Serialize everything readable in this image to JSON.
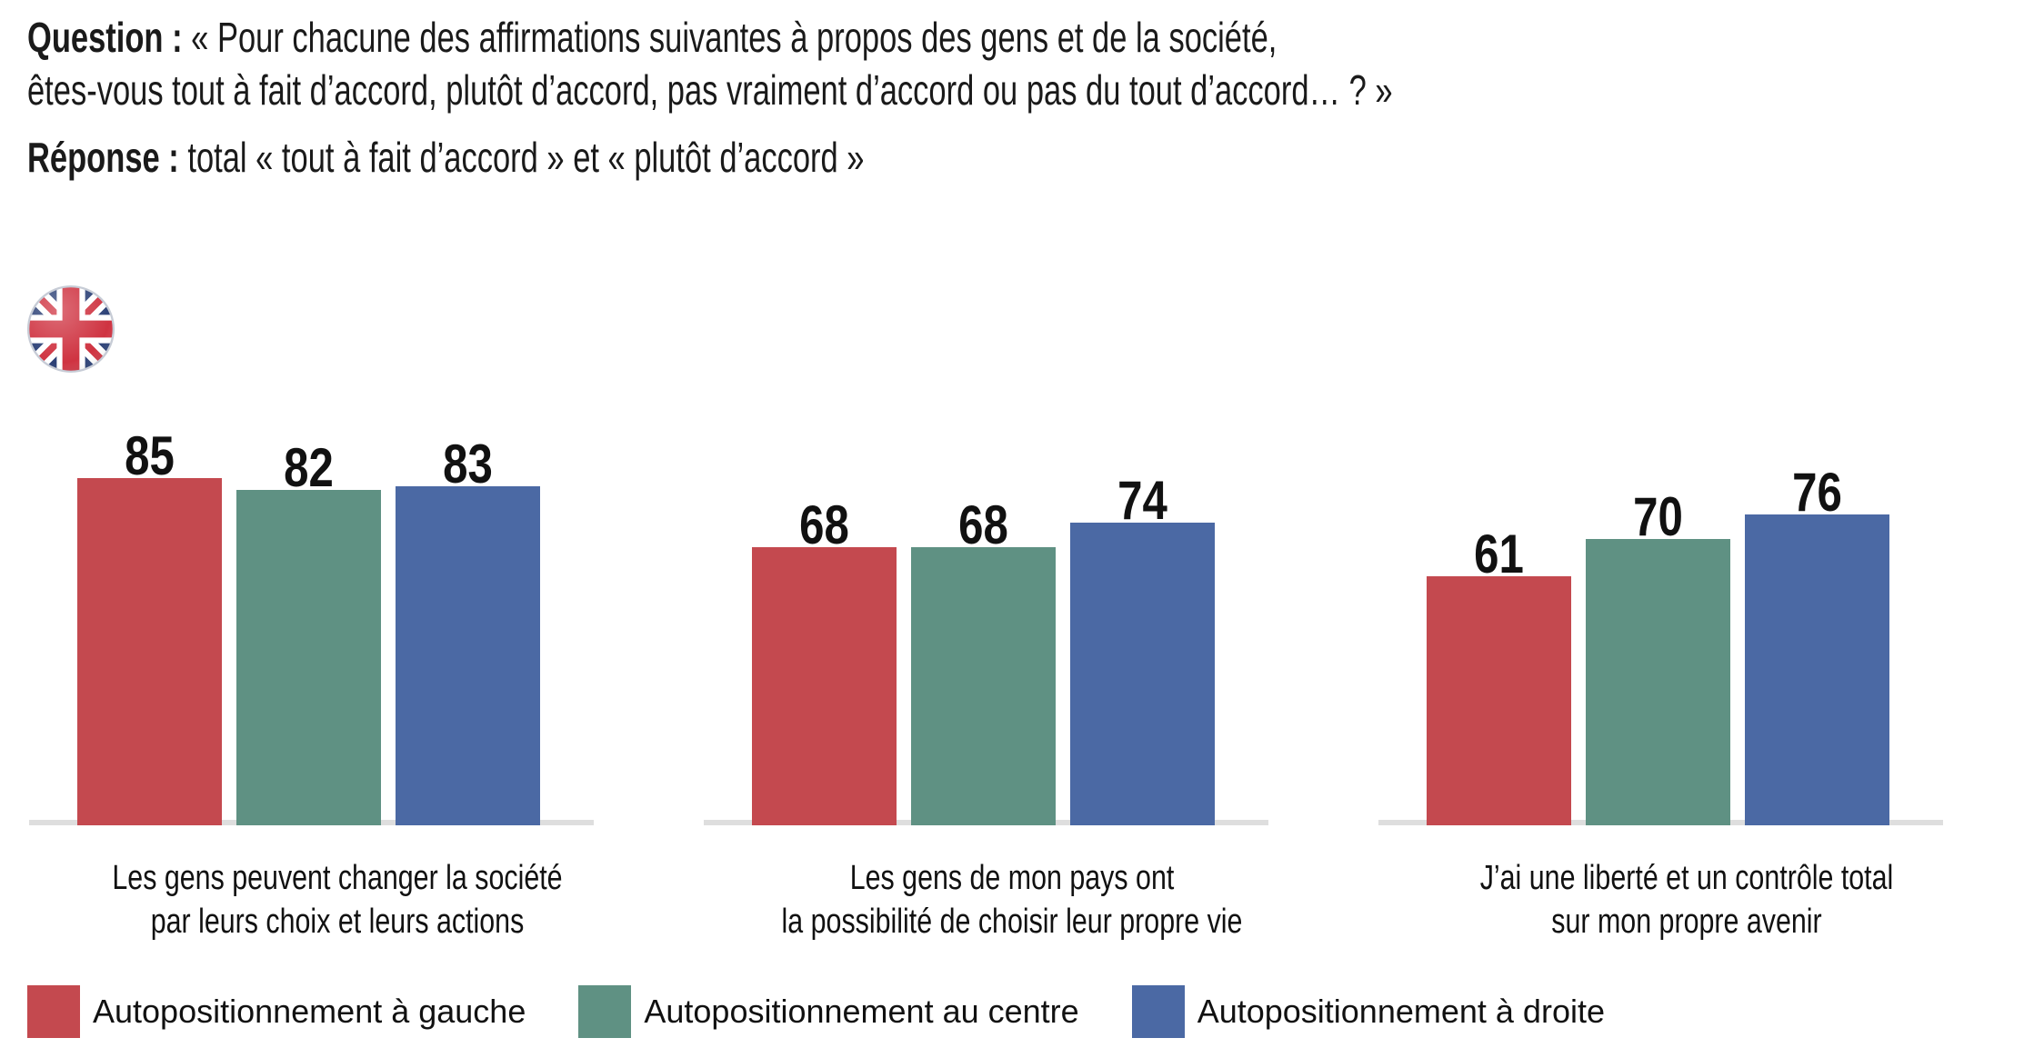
{
  "header": {
    "question_label": "Question :",
    "question_line1_rest": " « Pour chacune des affirmations suivantes à propos des gens et de la société,",
    "question_line2": "êtes-vous tout à fait d’accord, plutôt d’accord, pas vraiment d’accord ou pas du tout d’accord… ? »",
    "response_label": "Réponse :",
    "response_text": " total « tout à fait d’accord » et « plutôt d’accord »"
  },
  "icons": {
    "country_flag": "uk-flag-icon"
  },
  "colors": {
    "axis_line": "#DEDEDE",
    "text": "#111111"
  },
  "chart_data": {
    "type": "bar",
    "title": "",
    "xlabel": "",
    "ylabel": "",
    "ylim": [
      0,
      100
    ],
    "grid": false,
    "value_labels": true,
    "legend_position": "bottom",
    "categories": [
      "Les gens peuvent changer la société\npar leurs choix et leurs actions",
      "Les gens de mon pays ont\nla possibilité de choisir leur propre vie",
      "J’ai une liberté et un contrôle total\nsur mon propre avenir"
    ],
    "series": [
      {
        "name": "Autopositionnement à gauche",
        "color": "#C4494F",
        "values": [
          85,
          68,
          61
        ]
      },
      {
        "name": "Autopositionnement au centre",
        "color": "#5F9183",
        "values": [
          82,
          68,
          70
        ]
      },
      {
        "name": "Autopositionnement à droite",
        "color": "#4B69A4",
        "values": [
          83,
          74,
          76
        ]
      }
    ]
  }
}
